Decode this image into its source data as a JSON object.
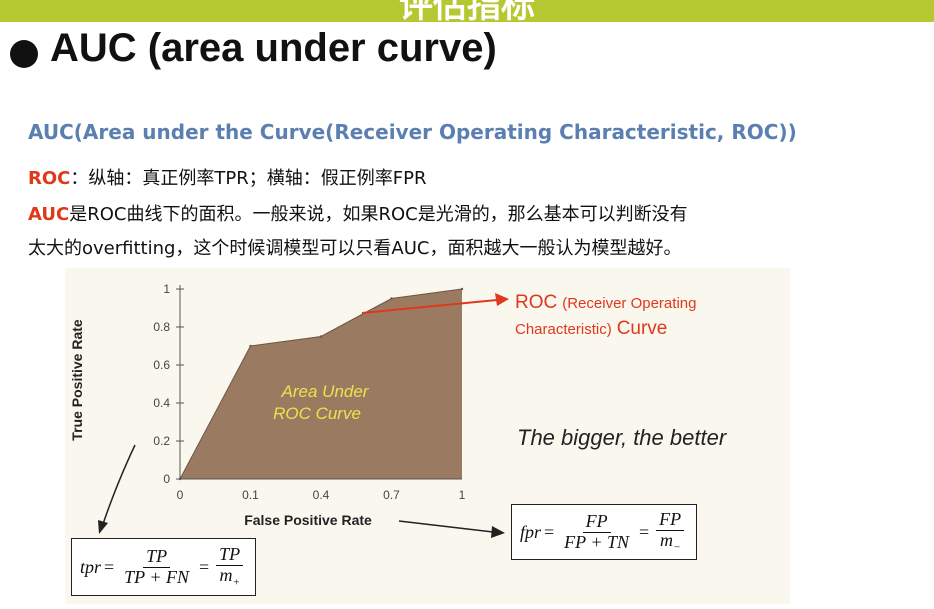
{
  "top_banner": {
    "text": "评估指标"
  },
  "heading": "AUC  (area under curve)",
  "subtitle": "AUC(Area under the Curve(Receiver Operating Characteristic, ROC))",
  "lines": {
    "line1_key": "ROC",
    "line1_rest": "：纵轴：真正例率TPR；横轴：假正例率FPR",
    "line2_key": "AUC",
    "line2_rest": "是ROC曲线下的面积。一般来说，如果ROC是光滑的，那么基本可以判断没有",
    "line3": "太大的overfitting，这个时候调模型可以只看AUC，面积越大一般认为模型越好。"
  },
  "chart_data": {
    "type": "area",
    "xlabel": "False Positive Rate",
    "ylabel": "True Positive Rate",
    "x_ticks": [
      "0",
      "0.1",
      "0.4",
      "0.7",
      "1"
    ],
    "y_ticks": [
      "0",
      "0.2",
      "0.4",
      "0.6",
      "0.8",
      "1"
    ],
    "ylim": [
      0,
      1
    ],
    "x_categorical_positions": true,
    "series": [
      {
        "x": [
          "0",
          "0.1",
          "0.4",
          "0.7",
          "1"
        ],
        "values": [
          0,
          0.7,
          0.75,
          0.95,
          1.0
        ]
      }
    ],
    "area_label_line1": "Area Under",
    "area_label_line2": "ROC Curve",
    "fill_color": "#9a7b62",
    "annotation_roc_big": "ROC",
    "annotation_roc_small": "(Receiver Operating",
    "annotation_roc_line2_small": "Characteristic)",
    "annotation_roc_line2_big": "Curve",
    "slogan": "The bigger, the better"
  },
  "formulas": {
    "tpr": {
      "lhs": "tpr",
      "num1": "TP",
      "den1": "TP + FN",
      "num2": "TP",
      "den2": "m",
      "den2_sub": "+"
    },
    "fpr": {
      "lhs": "fpr",
      "num1": "FP",
      "den1": "FP + TN",
      "num2": "FP",
      "den2": "m",
      "den2_sub": "−"
    }
  },
  "colors": {
    "banner": "#b5c832",
    "subtitle": "#5a7fb0",
    "highlight": "#e0381b",
    "arrow_red": "#e0381b"
  }
}
